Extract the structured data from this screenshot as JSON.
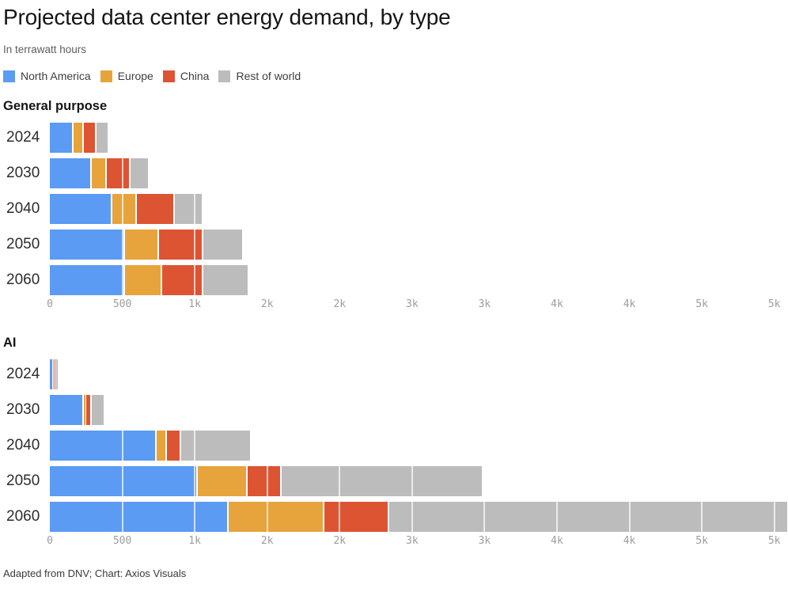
{
  "header": {
    "title": "Projected data center energy demand, by type",
    "subtitle": "In terrawatt hours"
  },
  "footer": {
    "text": "Adapted from DNV; Chart: Axios Visuals"
  },
  "colors": {
    "north_america": "#5b9bf3",
    "europe": "#e7a33c",
    "china": "#dd5433",
    "rest_of_world": "#bcbcbc"
  },
  "chart_data": [
    {
      "type": "bar",
      "orientation": "horizontal",
      "stacked": true,
      "title": "General purpose",
      "unit": "terrawatt hours",
      "categories": [
        "2024",
        "2030",
        "2040",
        "2050",
        "2060"
      ],
      "series": [
        {
          "name": "North America",
          "color": "#5b9bf3",
          "values": [
            165,
            290,
            430,
            520,
            520
          ]
        },
        {
          "name": "Europe",
          "color": "#e7a33c",
          "values": [
            70,
            105,
            170,
            235,
            255
          ]
        },
        {
          "name": "China",
          "color": "#dd5433",
          "values": [
            85,
            160,
            265,
            305,
            285
          ]
        },
        {
          "name": "Rest of world",
          "color": "#bcbcbc",
          "values": [
            80,
            120,
            185,
            265,
            305
          ]
        }
      ],
      "xlim": [
        0,
        5000
      ],
      "grid": true,
      "legend_position": "top",
      "tick_values": [
        0,
        500,
        1000,
        1500,
        2000,
        2500,
        3000,
        3500,
        4000,
        4500,
        5000
      ],
      "tick_labels": [
        "0",
        "500",
        "1k",
        "2k",
        "2k",
        "3k",
        "3k",
        "4k",
        "4k",
        "5k",
        "5k"
      ]
    },
    {
      "type": "bar",
      "orientation": "horizontal",
      "stacked": true,
      "title": "AI",
      "unit": "terrawatt hours",
      "categories": [
        "2024",
        "2030",
        "2040",
        "2050",
        "2060"
      ],
      "series": [
        {
          "name": "North America",
          "color": "#5b9bf3",
          "values": [
            15,
            235,
            735,
            1020,
            1235
          ]
        },
        {
          "name": "Europe",
          "color": "#e7a33c",
          "values": [
            2,
            10,
            75,
            345,
            660
          ]
        },
        {
          "name": "China",
          "color": "#dd5433",
          "values": [
            3,
            35,
            95,
            235,
            445
          ]
        },
        {
          "name": "Rest of world",
          "color": "#bcbcbc",
          "values": [
            10,
            85,
            475,
            1380,
            2750
          ]
        }
      ],
      "xlim": [
        0,
        5000
      ],
      "grid": true,
      "legend_position": "top",
      "tick_values": [
        0,
        500,
        1000,
        1500,
        2000,
        2500,
        3000,
        3500,
        4000,
        4500,
        5000
      ],
      "tick_labels": [
        "0",
        "500",
        "1k",
        "2k",
        "2k",
        "3k",
        "3k",
        "4k",
        "4k",
        "5k",
        "5k"
      ]
    }
  ]
}
